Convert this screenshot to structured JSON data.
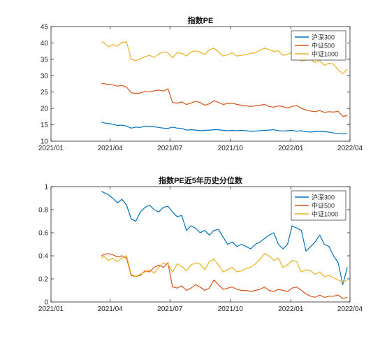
{
  "chart_data": [
    {
      "type": "line",
      "title": "指数PE",
      "ylim": [
        10,
        45
      ],
      "yticks": [
        "10",
        "15",
        "20",
        "25",
        "30",
        "35",
        "40",
        "45"
      ],
      "x_ticks": [
        "2021/01",
        "2021/04",
        "2021/07",
        "2021/10",
        "2022/01",
        "2022/04"
      ],
      "x_range": [
        "2021/01",
        "2022/04"
      ],
      "legend_position": "top-right",
      "grid": false,
      "series": [
        {
          "name": "沪深300",
          "color": "#0072BD",
          "x": [
            "2021-03-19",
            "2021-03-22",
            "2021-03-29",
            "2021-04-05",
            "2021-04-12",
            "2021-04-19",
            "2021-04-26",
            "2021-05-03",
            "2021-05-10",
            "2021-05-17",
            "2021-05-24",
            "2021-05-31",
            "2021-06-07",
            "2021-06-14",
            "2021-06-21",
            "2021-06-28",
            "2021-07-05",
            "2021-07-12",
            "2021-07-19",
            "2021-07-26",
            "2021-08-02",
            "2021-08-09",
            "2021-08-16",
            "2021-08-23",
            "2021-08-30",
            "2021-09-06",
            "2021-09-13",
            "2021-09-20",
            "2021-09-27",
            "2021-10-04",
            "2021-10-11",
            "2021-10-18",
            "2021-10-25",
            "2021-11-01",
            "2021-11-08",
            "2021-11-15",
            "2021-11-22",
            "2021-11-29",
            "2021-12-06",
            "2021-12-13",
            "2021-12-20",
            "2021-12-27",
            "2022-01-03",
            "2022-01-10",
            "2022-01-17",
            "2022-01-24",
            "2022-01-31",
            "2022-02-07",
            "2022-02-14",
            "2022-02-21",
            "2022-02-28",
            "2022-03-07",
            "2022-03-14",
            "2022-03-21",
            "2022-03-28"
          ],
          "values": [
            15.9,
            15.6,
            15.4,
            15.2,
            14.8,
            14.9,
            14.6,
            14.0,
            14.3,
            14.2,
            14.6,
            14.5,
            14.4,
            14.2,
            14.0,
            13.9,
            14.3,
            14.0,
            13.9,
            13.4,
            13.5,
            13.4,
            13.2,
            13.3,
            13.4,
            13.5,
            13.5,
            13.3,
            13.2,
            13.3,
            13.2,
            13.3,
            13.2,
            13.0,
            13.1,
            13.2,
            13.3,
            13.4,
            13.5,
            13.2,
            13.1,
            13.2,
            13.3,
            13.0,
            13.2,
            12.9,
            12.8,
            12.9,
            13.0,
            12.9,
            12.8,
            12.5,
            12.4,
            12.2,
            12.3
          ]
        },
        {
          "name": "中证500",
          "color": "#D95319",
          "x": [
            "2021-03-19",
            "2021-03-22",
            "2021-03-29",
            "2021-04-05",
            "2021-04-12",
            "2021-04-19",
            "2021-04-26",
            "2021-05-03",
            "2021-05-10",
            "2021-05-17",
            "2021-05-24",
            "2021-05-31",
            "2021-06-07",
            "2021-06-14",
            "2021-06-21",
            "2021-06-28",
            "2021-07-05",
            "2021-07-12",
            "2021-07-19",
            "2021-07-26",
            "2021-08-02",
            "2021-08-09",
            "2021-08-16",
            "2021-08-23",
            "2021-08-30",
            "2021-09-06",
            "2021-09-13",
            "2021-09-20",
            "2021-09-27",
            "2021-10-04",
            "2021-10-11",
            "2021-10-18",
            "2021-10-25",
            "2021-11-01",
            "2021-11-08",
            "2021-11-15",
            "2021-11-22",
            "2021-11-29",
            "2021-12-06",
            "2021-12-13",
            "2021-12-20",
            "2021-12-27",
            "2022-01-03",
            "2022-01-10",
            "2022-01-17",
            "2022-01-24",
            "2022-01-31",
            "2022-02-07",
            "2022-02-14",
            "2022-02-21",
            "2022-02-28",
            "2022-03-07",
            "2022-03-14",
            "2022-03-21",
            "2022-03-28"
          ],
          "values": [
            27.5,
            27.6,
            27.3,
            27.2,
            26.8,
            27.0,
            26.5,
            24.8,
            24.6,
            24.7,
            25.2,
            25.0,
            25.4,
            25.6,
            25.3,
            26.0,
            21.8,
            21.6,
            22.0,
            21.2,
            21.6,
            22.2,
            21.8,
            21.0,
            21.4,
            22.4,
            21.8,
            21.2,
            21.5,
            21.6,
            21.2,
            21.0,
            20.8,
            20.6,
            20.8,
            21.0,
            21.2,
            20.6,
            20.4,
            20.8,
            20.5,
            20.2,
            20.6,
            20.9,
            20.0,
            19.5,
            19.2,
            19.0,
            19.4,
            18.8,
            19.0,
            18.9,
            19.1,
            17.6,
            17.8
          ]
        },
        {
          "name": "中证1000",
          "color": "#EDB120",
          "x": [
            "2021-03-19",
            "2021-03-22",
            "2021-03-29",
            "2021-04-05",
            "2021-04-12",
            "2021-04-19",
            "2021-04-26",
            "2021-05-03",
            "2021-05-10",
            "2021-05-17",
            "2021-05-24",
            "2021-05-31",
            "2021-06-07",
            "2021-06-14",
            "2021-06-21",
            "2021-06-28",
            "2021-07-05",
            "2021-07-12",
            "2021-07-19",
            "2021-07-26",
            "2021-08-02",
            "2021-08-09",
            "2021-08-16",
            "2021-08-23",
            "2021-08-30",
            "2021-09-06",
            "2021-09-13",
            "2021-09-20",
            "2021-09-27",
            "2021-10-04",
            "2021-10-11",
            "2021-10-18",
            "2021-10-25",
            "2021-11-01",
            "2021-11-08",
            "2021-11-15",
            "2021-11-22",
            "2021-11-29",
            "2021-12-06",
            "2021-12-13",
            "2021-12-20",
            "2021-12-27",
            "2022-01-03",
            "2022-01-10",
            "2022-01-17",
            "2022-01-24",
            "2022-01-31",
            "2022-02-07",
            "2022-02-14",
            "2022-02-21",
            "2022-02-28",
            "2022-03-07",
            "2022-03-14",
            "2022-03-21",
            "2022-03-28"
          ],
          "values": [
            40.0,
            40.3,
            38.8,
            39.5,
            39.0,
            40.2,
            40.3,
            35.0,
            34.6,
            35.2,
            35.8,
            36.2,
            35.6,
            36.6,
            37.3,
            37.0,
            35.5,
            37.0,
            36.8,
            36.0,
            37.2,
            37.6,
            37.2,
            36.4,
            38.0,
            38.4,
            37.2,
            36.0,
            36.4,
            37.0,
            36.0,
            36.2,
            36.5,
            36.8,
            37.0,
            37.8,
            38.4,
            38.0,
            37.4,
            37.6,
            36.2,
            36.5,
            37.2,
            37.0,
            34.4,
            34.8,
            35.0,
            34.0,
            34.6,
            33.2,
            33.8,
            33.5,
            31.8,
            30.6,
            32.0
          ]
        }
      ]
    },
    {
      "type": "line",
      "title": "指数PE近5年历史分位数",
      "ylim": [
        0,
        1
      ],
      "yticks": [
        "0",
        "0.2",
        "0.4",
        "0.6",
        "0.8",
        "1"
      ],
      "x_ticks": [
        "2021/01",
        "2021/04",
        "2021/07",
        "2021/10",
        "2022/01",
        "2022/04"
      ],
      "x_range": [
        "2021/01",
        "2022/04"
      ],
      "legend_position": "top-right",
      "grid": false,
      "series": [
        {
          "name": "沪深300",
          "color": "#0072BD",
          "x": [
            "2021-03-19",
            "2021-03-22",
            "2021-03-29",
            "2021-04-05",
            "2021-04-12",
            "2021-04-19",
            "2021-04-26",
            "2021-05-03",
            "2021-05-10",
            "2021-05-17",
            "2021-05-24",
            "2021-05-31",
            "2021-06-07",
            "2021-06-14",
            "2021-06-21",
            "2021-06-28",
            "2021-07-05",
            "2021-07-12",
            "2021-07-19",
            "2021-07-26",
            "2021-08-02",
            "2021-08-09",
            "2021-08-16",
            "2021-08-23",
            "2021-08-30",
            "2021-09-06",
            "2021-09-13",
            "2021-09-20",
            "2021-09-27",
            "2021-10-04",
            "2021-10-11",
            "2021-10-18",
            "2021-10-25",
            "2021-11-01",
            "2021-11-08",
            "2021-11-15",
            "2021-11-22",
            "2021-11-29",
            "2021-12-06",
            "2021-12-13",
            "2021-12-20",
            "2021-12-27",
            "2022-01-03",
            "2022-01-10",
            "2022-01-17",
            "2022-01-24",
            "2022-01-31",
            "2022-02-07",
            "2022-02-14",
            "2022-02-21",
            "2022-02-28",
            "2022-03-07",
            "2022-03-14",
            "2022-03-21",
            "2022-03-28"
          ],
          "values": [
            0.96,
            0.95,
            0.93,
            0.9,
            0.86,
            0.89,
            0.84,
            0.72,
            0.7,
            0.78,
            0.82,
            0.84,
            0.8,
            0.78,
            0.82,
            0.83,
            0.78,
            0.74,
            0.75,
            0.62,
            0.66,
            0.64,
            0.6,
            0.62,
            0.58,
            0.62,
            0.63,
            0.56,
            0.5,
            0.52,
            0.48,
            0.5,
            0.48,
            0.46,
            0.5,
            0.52,
            0.55,
            0.58,
            0.6,
            0.5,
            0.46,
            0.5,
            0.66,
            0.64,
            0.62,
            0.44,
            0.48,
            0.52,
            0.58,
            0.5,
            0.48,
            0.4,
            0.34,
            0.15,
            0.3
          ]
        },
        {
          "name": "中证500",
          "color": "#D95319",
          "x": [
            "2021-03-19",
            "2021-03-22",
            "2021-03-29",
            "2021-04-05",
            "2021-04-12",
            "2021-04-19",
            "2021-04-26",
            "2021-05-03",
            "2021-05-10",
            "2021-05-17",
            "2021-05-24",
            "2021-05-31",
            "2021-06-07",
            "2021-06-14",
            "2021-06-21",
            "2021-06-28",
            "2021-07-05",
            "2021-07-12",
            "2021-07-19",
            "2021-07-26",
            "2021-08-02",
            "2021-08-09",
            "2021-08-16",
            "2021-08-23",
            "2021-08-30",
            "2021-09-06",
            "2021-09-13",
            "2021-09-20",
            "2021-09-27",
            "2021-10-04",
            "2021-10-11",
            "2021-10-18",
            "2021-10-25",
            "2021-11-01",
            "2021-11-08",
            "2021-11-15",
            "2021-11-22",
            "2021-11-29",
            "2021-12-06",
            "2021-12-13",
            "2021-12-20",
            "2021-12-27",
            "2022-01-03",
            "2022-01-10",
            "2022-01-17",
            "2022-01-24",
            "2022-01-31",
            "2022-02-07",
            "2022-02-14",
            "2022-02-21",
            "2022-02-28",
            "2022-03-07",
            "2022-03-14",
            "2022-03-21",
            "2022-03-28"
          ],
          "values": [
            0.4,
            0.41,
            0.42,
            0.41,
            0.39,
            0.4,
            0.38,
            0.23,
            0.22,
            0.23,
            0.27,
            0.26,
            0.3,
            0.32,
            0.3,
            0.34,
            0.13,
            0.12,
            0.14,
            0.1,
            0.12,
            0.15,
            0.13,
            0.1,
            0.12,
            0.19,
            0.15,
            0.11,
            0.12,
            0.13,
            0.11,
            0.1,
            0.1,
            0.09,
            0.1,
            0.11,
            0.13,
            0.1,
            0.09,
            0.11,
            0.1,
            0.09,
            0.12,
            0.13,
            0.1,
            0.07,
            0.05,
            0.04,
            0.06,
            0.04,
            0.05,
            0.05,
            0.06,
            0.03,
            0.04
          ]
        },
        {
          "name": "中证1000",
          "color": "#EDB120",
          "x": [
            "2021-03-19",
            "2021-03-22",
            "2021-03-29",
            "2021-04-05",
            "2021-04-12",
            "2021-04-19",
            "2021-04-26",
            "2021-05-03",
            "2021-05-10",
            "2021-05-17",
            "2021-05-24",
            "2021-05-31",
            "2021-06-07",
            "2021-06-14",
            "2021-06-21",
            "2021-06-28",
            "2021-07-05",
            "2021-07-12",
            "2021-07-19",
            "2021-07-26",
            "2021-08-02",
            "2021-08-09",
            "2021-08-16",
            "2021-08-23",
            "2021-08-30",
            "2021-09-06",
            "2021-09-13",
            "2021-09-20",
            "2021-09-27",
            "2021-10-04",
            "2021-10-11",
            "2021-10-18",
            "2021-10-25",
            "2021-11-01",
            "2021-11-08",
            "2021-11-15",
            "2021-11-22",
            "2021-11-29",
            "2021-12-06",
            "2021-12-13",
            "2021-12-20",
            "2021-12-27",
            "2022-01-03",
            "2022-01-10",
            "2022-01-17",
            "2022-01-24",
            "2022-01-31",
            "2022-02-07",
            "2022-02-14",
            "2022-02-21",
            "2022-02-28",
            "2022-03-07",
            "2022-03-14",
            "2022-03-21",
            "2022-03-28"
          ],
          "values": [
            0.38,
            0.4,
            0.36,
            0.38,
            0.35,
            0.38,
            0.4,
            0.24,
            0.22,
            0.24,
            0.26,
            0.28,
            0.25,
            0.3,
            0.34,
            0.33,
            0.26,
            0.33,
            0.31,
            0.27,
            0.32,
            0.34,
            0.33,
            0.28,
            0.35,
            0.37,
            0.32,
            0.26,
            0.28,
            0.3,
            0.26,
            0.27,
            0.29,
            0.3,
            0.33,
            0.37,
            0.42,
            0.4,
            0.36,
            0.38,
            0.3,
            0.32,
            0.36,
            0.35,
            0.26,
            0.28,
            0.27,
            0.24,
            0.26,
            0.22,
            0.23,
            0.21,
            0.19,
            0.17,
            0.19
          ]
        }
      ]
    }
  ]
}
